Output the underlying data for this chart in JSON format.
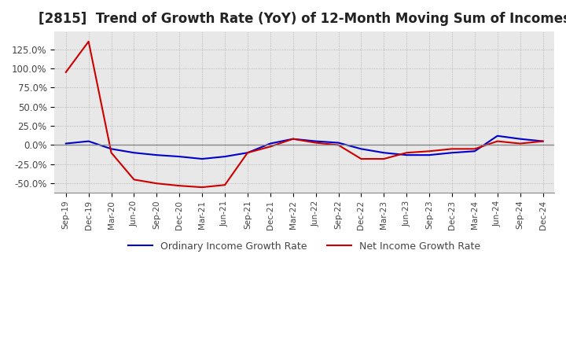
{
  "title": "[2815]  Trend of Growth Rate (YoY) of 12-Month Moving Sum of Incomes",
  "title_fontsize": 12,
  "ylim": [
    -62,
    148
  ],
  "yticks": [
    -50,
    -25,
    0,
    25,
    50,
    75,
    100,
    125
  ],
  "ytick_labels": [
    "-50.0%",
    "-25.0%",
    "0.0%",
    "25.0%",
    "50.0%",
    "75.0%",
    "100.0%",
    "125.0%"
  ],
  "x_labels": [
    "Sep-19",
    "Dec-19",
    "Mar-20",
    "Jun-20",
    "Sep-20",
    "Dec-20",
    "Mar-21",
    "Jun-21",
    "Sep-21",
    "Dec-21",
    "Mar-22",
    "Jun-22",
    "Sep-22",
    "Dec-22",
    "Mar-23",
    "Jun-23",
    "Sep-23",
    "Dec-23",
    "Mar-24",
    "Jun-24",
    "Sep-24",
    "Dec-24"
  ],
  "ordinary_income": [
    2.0,
    5.0,
    -5.0,
    -10.0,
    -13.0,
    -15.0,
    -18.0,
    -15.0,
    -10.0,
    2.0,
    8.0,
    5.0,
    3.0,
    -5.0,
    -10.0,
    -13.0,
    -13.0,
    -10.0,
    -8.0,
    12.0,
    8.0,
    5.0
  ],
  "net_income": [
    95.0,
    135.0,
    -10.0,
    -45.0,
    -50.0,
    -53.0,
    -55.0,
    -52.0,
    -10.0,
    -2.0,
    8.0,
    3.0,
    0.0,
    -18.0,
    -18.0,
    -10.0,
    -8.0,
    -5.0,
    -5.0,
    5.0,
    2.0,
    5.0
  ],
  "ordinary_color": "#0000cc",
  "net_color": "#cc0000",
  "background_color": "#ffffff",
  "plot_bg_color": "#e8e8e8",
  "grid_color": "#aaaaaa",
  "legend_ordinary": "Ordinary Income Growth Rate",
  "legend_net": "Net Income Growth Rate"
}
